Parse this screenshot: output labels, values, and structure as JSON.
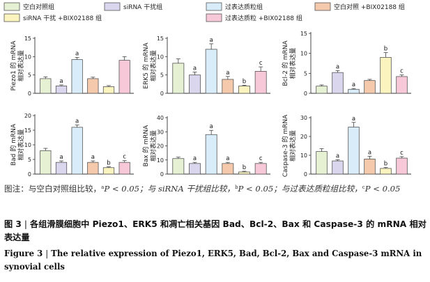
{
  "legend": [
    {
      "label": "空白对照组",
      "color": "#e6f0d3"
    },
    {
      "label": "siRNA 干扰组",
      "color": "#d9d6ee"
    },
    {
      "label": "过表达质粒组",
      "color": "#d8ecfa"
    },
    {
      "label": "空白对照 +BIX02188 组",
      "color": "#f5c9ac"
    },
    {
      "label": "siRNA 干扰 +BIX02188 组",
      "color": "#fbf4be"
    },
    {
      "label": "过表达质粒 +BIX02188 组",
      "color": "#f7c8d8"
    }
  ],
  "chart_data": [
    {
      "type": "bar",
      "ylabel": "Piezo1 的 mRNA\n相对表达量",
      "ylim": [
        0,
        15
      ],
      "yticks": [
        0,
        5,
        10,
        15
      ],
      "categories": [
        "空白对照组",
        "siRNA 干扰组",
        "过表达质粒组",
        "空白对照 +BIX02188 组",
        "siRNA 干扰 +BIX02188 组",
        "过表达质粒 +BIX02188 组"
      ],
      "values": [
        4.0,
        2.0,
        9.2,
        4.0,
        1.8,
        9.0
      ],
      "errors": [
        0.5,
        0.3,
        0.6,
        0.4,
        0.3,
        1.0
      ],
      "labels": [
        "",
        "a",
        "a",
        "",
        "",
        ""
      ]
    },
    {
      "type": "bar",
      "ylabel": "ERK5 的 mRNA\n相对表达量",
      "ylim": [
        0,
        15
      ],
      "yticks": [
        0,
        5,
        10,
        15
      ],
      "categories": [
        "空白对照组",
        "siRNA 干扰组",
        "过表达质粒组",
        "空白对照 +BIX02188 组",
        "siRNA 干扰 +BIX02188 组",
        "过表达质粒 +BIX02188 组"
      ],
      "values": [
        8.2,
        5.0,
        12.0,
        3.8,
        2.0,
        6.0
      ],
      "errors": [
        1.2,
        0.8,
        1.5,
        0.8,
        0.2,
        1.2
      ],
      "labels": [
        "",
        "a",
        "a",
        "a",
        "b",
        "c"
      ]
    },
    {
      "type": "bar",
      "ylabel": "Bcl-2 的 mRNA\n相对表达量",
      "ylim": [
        0,
        15
      ],
      "yticks": [
        0,
        5,
        10,
        15
      ],
      "categories": [
        "空白对照组",
        "siRNA 干扰组",
        "过表达质粒组",
        "空白对照 +BIX02188 组",
        "siRNA 干扰 +BIX02188 组",
        "过表达质粒 +BIX02188 组"
      ],
      "values": [
        1.8,
        5.2,
        1.0,
        3.2,
        9.0,
        4.2
      ],
      "errors": [
        0.3,
        0.5,
        0.2,
        0.3,
        1.2,
        0.4
      ],
      "labels": [
        "",
        "a",
        "a",
        "",
        "b",
        "c"
      ]
    },
    {
      "type": "bar",
      "ylabel": "Bad 的 mRNA\n相对表达量",
      "ylim": [
        0,
        20
      ],
      "yticks": [
        0,
        5,
        10,
        15,
        20
      ],
      "categories": [
        "空白对照组",
        "siRNA 干扰组",
        "过表达质粒组",
        "空白对照 +BIX02188 组",
        "siRNA 干扰 +BIX02188 组",
        "过表达质粒 +BIX02188 组"
      ],
      "values": [
        8.0,
        4.0,
        16.0,
        4.0,
        2.2,
        4.0
      ],
      "errors": [
        0.8,
        0.5,
        0.8,
        0.5,
        0.3,
        0.6
      ],
      "labels": [
        "",
        "a",
        "a",
        "a",
        "b",
        "c"
      ]
    },
    {
      "type": "bar",
      "ylabel": "Bax 的 mRNA\n相对表达量",
      "ylim": [
        0,
        40
      ],
      "yticks": [
        0,
        10,
        20,
        30,
        40
      ],
      "categories": [
        "空白对照组",
        "siRNA 干扰组",
        "过表达质粒组",
        "空白对照 +BIX02188 组",
        "siRNA 干扰 +BIX02188 组",
        "过表达质粒 +BIX02188 组"
      ],
      "values": [
        11.0,
        7.5,
        28.0,
        7.5,
        1.5,
        7.5
      ],
      "errors": [
        1.0,
        0.8,
        3.0,
        0.8,
        0.5,
        0.8
      ],
      "labels": [
        "",
        "a",
        "a",
        "a",
        "b",
        "c"
      ]
    },
    {
      "type": "bar",
      "ylabel": "Caspase-3 的 mRNA\n相对表达量",
      "ylim": [
        0,
        30
      ],
      "yticks": [
        0,
        10,
        20,
        30
      ],
      "categories": [
        "空白对照组",
        "siRNA 干扰组",
        "过表达质粒组",
        "空白对照 +BIX02188 组",
        "siRNA 干扰 +BIX02188 组",
        "过表达质粒 +BIX02188 组"
      ],
      "values": [
        12.0,
        7.0,
        25.0,
        8.0,
        3.0,
        8.5
      ],
      "errors": [
        1.5,
        0.6,
        2.5,
        1.5,
        0.5,
        0.8
      ],
      "labels": [
        "",
        "a",
        "a",
        "a",
        "b",
        "c"
      ]
    }
  ],
  "note": {
    "prefix": "图注：与空白对照组比较，",
    "a": "a",
    "p1": "P < 0.05；与 siRNA 干扰组比较，",
    "b": "b",
    "p2": "P < 0.05；与过表达质粒组比较，",
    "c": "c",
    "p3": "P < 0.05"
  },
  "caption_cn": {
    "label": "图 3",
    "sep": "|",
    "text": "各组滑膜细胞中 Piezo1、ERK5 和凋亡相关基因 Bad、Bcl-2、Bax 和 Caspase-3 的 mRNA 相对表达量"
  },
  "caption_en": {
    "label": "Figure 3",
    "sep": "|",
    "text": "The relative expression of Piezo1, ERK5, Bad, Bcl-2, Bax and Caspase-3 mRNA in synovial cells"
  }
}
